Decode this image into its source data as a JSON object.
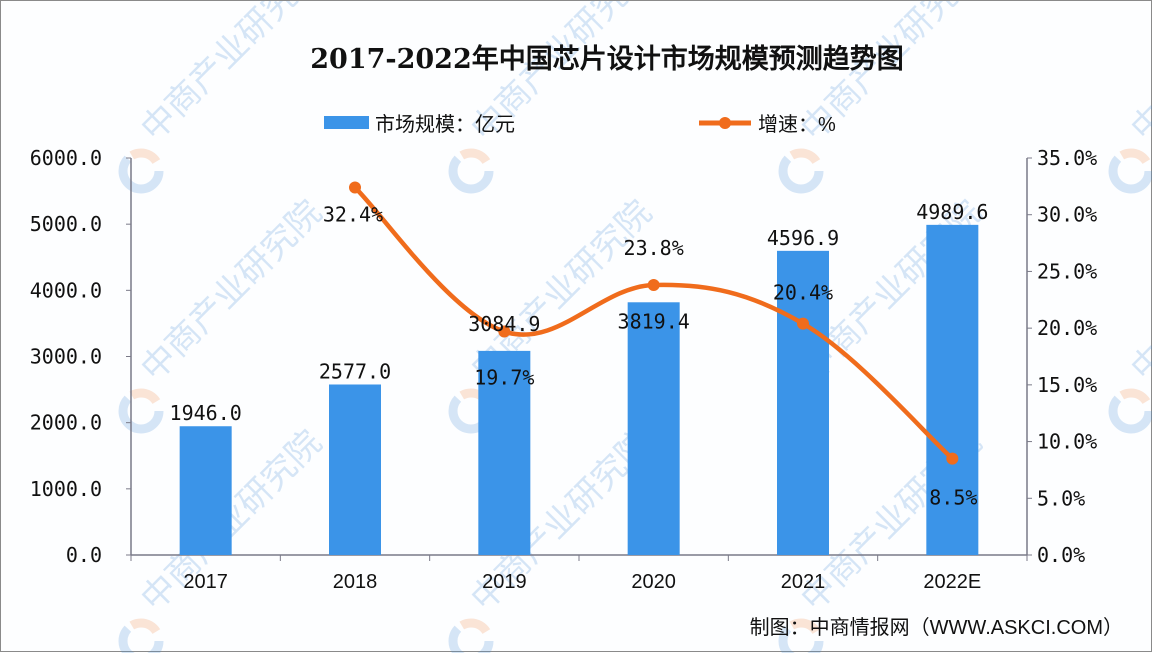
{
  "chart_data": {
    "type": "bar",
    "title": "2017-2022年中国芯片设计市场规模预测趋势图",
    "categories": [
      "2017",
      "2018",
      "2019",
      "2020",
      "2021",
      "2022E"
    ],
    "series": [
      {
        "name": "市场规模：亿元",
        "type": "bar",
        "axis": "left",
        "color": "#3b94e8",
        "values": [
          1946.0,
          2577.0,
          3084.9,
          3819.4,
          4596.9,
          4989.6
        ],
        "labels": [
          "1946.0",
          "2577.0",
          "3084.9",
          "3819.4",
          "4596.9",
          "4989.6"
        ]
      },
      {
        "name": "增速：%",
        "type": "line",
        "axis": "right",
        "color": "#f06c1c",
        "values": [
          null,
          32.4,
          19.7,
          23.8,
          20.4,
          8.5
        ],
        "labels": [
          "",
          "32.4%",
          "19.7%",
          "23.8%",
          "20.4%",
          "8.5%"
        ]
      }
    ],
    "left_axis": {
      "min": 0,
      "max": 6000,
      "step": 1000,
      "ticks": [
        "0.0",
        "1000.0",
        "2000.0",
        "3000.0",
        "4000.0",
        "5000.0",
        "6000.0"
      ]
    },
    "right_axis": {
      "min": 0,
      "max": 35,
      "step": 5,
      "ticks": [
        "0.0%",
        "5.0%",
        "10.0%",
        "15.0%",
        "20.0%",
        "25.0%",
        "30.0%",
        "35.0%"
      ]
    },
    "xlabel": "",
    "ylabel": "",
    "legend_position": "top",
    "grid": false
  },
  "legend": {
    "bar_label": "市场规模：亿元",
    "line_label": "增速：%"
  },
  "source": "制图：中商情报网（WWW.ASKCI.COM）",
  "watermark": "中商产业研究院"
}
